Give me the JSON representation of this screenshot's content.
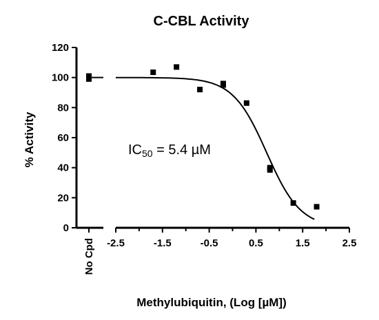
{
  "chart_data": {
    "type": "scatter",
    "title": "C-CBL Activity",
    "xlabel": "Methylubiquitin, (Log [µM])",
    "ylabel": "% Activity",
    "xlim": [
      -2.5,
      2.5
    ],
    "ylim": [
      0,
      120
    ],
    "x_ticks": [
      "-2.5",
      "-1.5",
      "-0.5",
      "0.5",
      "1.5",
      "2.5"
    ],
    "y_ticks": [
      "0",
      "20",
      "40",
      "60",
      "80",
      "100",
      "120"
    ],
    "x_categorical_tick": "No Cpd",
    "control_points": [
      101,
      99
    ],
    "control_mean": 100,
    "points": [
      {
        "x": -1.7,
        "y": 103.5
      },
      {
        "x": -1.2,
        "y": 107
      },
      {
        "x": -0.7,
        "y": 92
      },
      {
        "x": -0.2,
        "y": 95
      },
      {
        "x": -0.2,
        "y": 96
      },
      {
        "x": 0.3,
        "y": 83
      },
      {
        "x": 0.8,
        "y": 40
      },
      {
        "x": 0.8,
        "y": 38.5
      },
      {
        "x": 1.3,
        "y": 16.5
      },
      {
        "x": 1.8,
        "y": 14
      }
    ],
    "fit": {
      "model": "sigmoidal",
      "top": 100,
      "bottom": 0,
      "log_ic50": 0.73,
      "hill_slope": -1.2,
      "x_range": [
        -2.5,
        1.75
      ]
    },
    "annotation": {
      "prefix": "IC",
      "subscript": "50",
      "suffix": " = 5.4 µM"
    },
    "grid": false,
    "legend": "none",
    "marker_color": "#000000",
    "line_color": "#000000"
  }
}
